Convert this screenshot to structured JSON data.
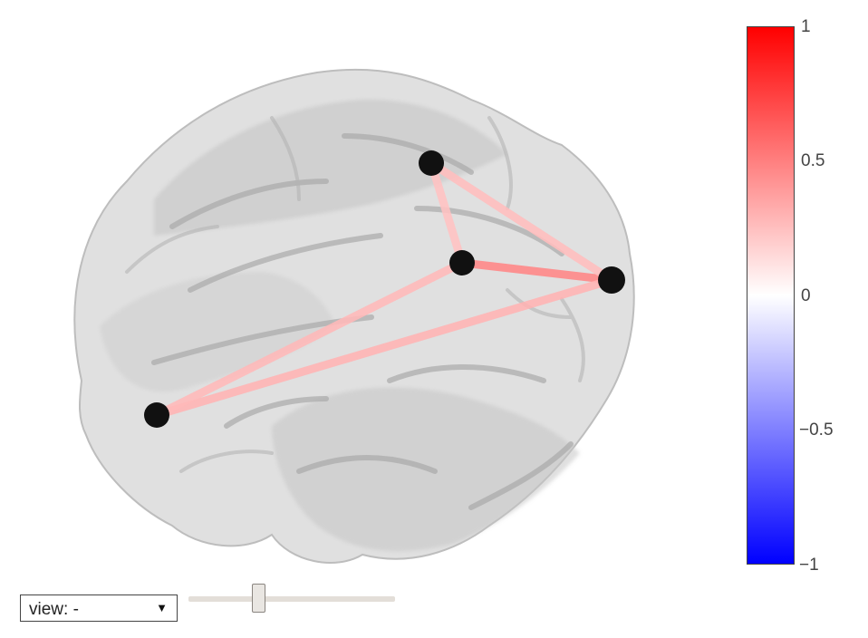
{
  "brain_plot": {
    "nodes": [
      {
        "id": "n1"
      },
      {
        "id": "n2"
      },
      {
        "id": "n3"
      },
      {
        "id": "n4"
      }
    ],
    "edges": [
      {
        "from": "n2",
        "to": "n4",
        "weight": 0.48
      },
      {
        "from": "n1",
        "to": "n4",
        "weight": 0.3
      },
      {
        "from": "n1",
        "to": "n2",
        "weight": 0.28
      },
      {
        "from": "n3",
        "to": "n4",
        "weight": 0.26
      },
      {
        "from": "n3",
        "to": "n2",
        "weight": 0.24
      }
    ],
    "node_color": "#111111",
    "brain_color": "#c8c8c8"
  },
  "colorbar": {
    "colors": [
      "#0000ff",
      "#ffffff",
      "#ff0000"
    ],
    "range": [
      -1,
      1
    ],
    "ticks": [
      {
        "value": 1,
        "label": "1"
      },
      {
        "value": 0.5,
        "label": "0.5"
      },
      {
        "value": 0,
        "label": "0"
      },
      {
        "value": -0.5,
        "label": "−0.5"
      },
      {
        "value": -1,
        "label": "−1"
      }
    ]
  },
  "controls": {
    "view_select_label": "view: -",
    "view_select_arrow": "▼",
    "slider_value": 0.34
  }
}
